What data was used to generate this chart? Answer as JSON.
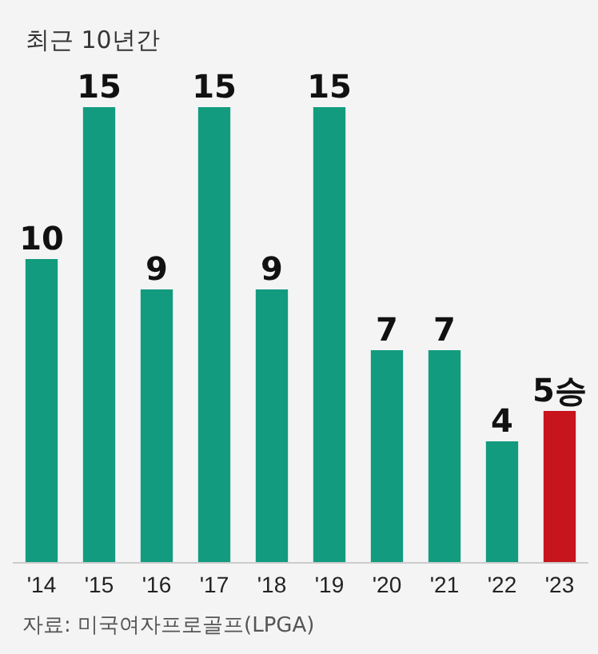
{
  "chart_data": {
    "type": "bar",
    "subtitle": "최근 10년간",
    "categories": [
      "'14",
      "'15",
      "'16",
      "'17",
      "'18",
      "'19",
      "'20",
      "'21",
      "'22",
      "'23"
    ],
    "values": [
      10,
      15,
      9,
      15,
      9,
      15,
      7,
      7,
      4,
      5
    ],
    "colors": [
      "#139b7f",
      "#139b7f",
      "#139b7f",
      "#139b7f",
      "#139b7f",
      "#139b7f",
      "#139b7f",
      "#139b7f",
      "#139b7f",
      "#c8141c"
    ],
    "value_labels": [
      "10",
      "15",
      "9",
      "15",
      "9",
      "15",
      "7",
      "7",
      "4",
      "5승"
    ],
    "annotations": [
      "자료: 미국여자프로골프(LPGA)"
    ]
  }
}
